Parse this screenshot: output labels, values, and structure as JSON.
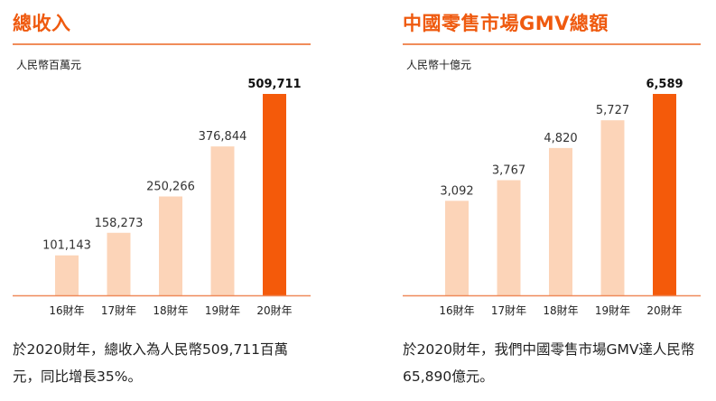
{
  "colors": {
    "accent": "#ef5a0f",
    "bar_light": "#fcd4b8",
    "bar_highlight": "#f45a0a",
    "axis": "#ef8a5a"
  },
  "chart_data": [
    {
      "type": "bar",
      "title": "總收入",
      "ylabel": "人民幣百萬元",
      "categories": [
        "16財年",
        "17財年",
        "18財年",
        "19財年",
        "20財年"
      ],
      "values": [
        101143,
        158273,
        250266,
        376844,
        509711
      ],
      "value_labels": [
        "101,143",
        "158,273",
        "250,266",
        "376,844",
        "509,711"
      ],
      "highlight_index": 4,
      "ylim": [
        0,
        509711
      ],
      "grid": false
    },
    {
      "type": "bar",
      "title": "中國零售市場GMV總額",
      "ylabel": "人民幣十億元",
      "categories": [
        "16財年",
        "17財年",
        "18財年",
        "19財年",
        "20財年"
      ],
      "values": [
        3092,
        3767,
        4820,
        5727,
        6589
      ],
      "value_labels": [
        "3,092",
        "3,767",
        "4,820",
        "5,727",
        "6,589"
      ],
      "highlight_index": 4,
      "ylim": [
        0,
        6589
      ],
      "grid": false
    }
  ],
  "captions": [
    "於2020財年，總收入為人民幣509,711百萬元，同比增長35%。",
    "於2020財年，我們中國零售市場GMV達人民幣65,890億元。"
  ]
}
